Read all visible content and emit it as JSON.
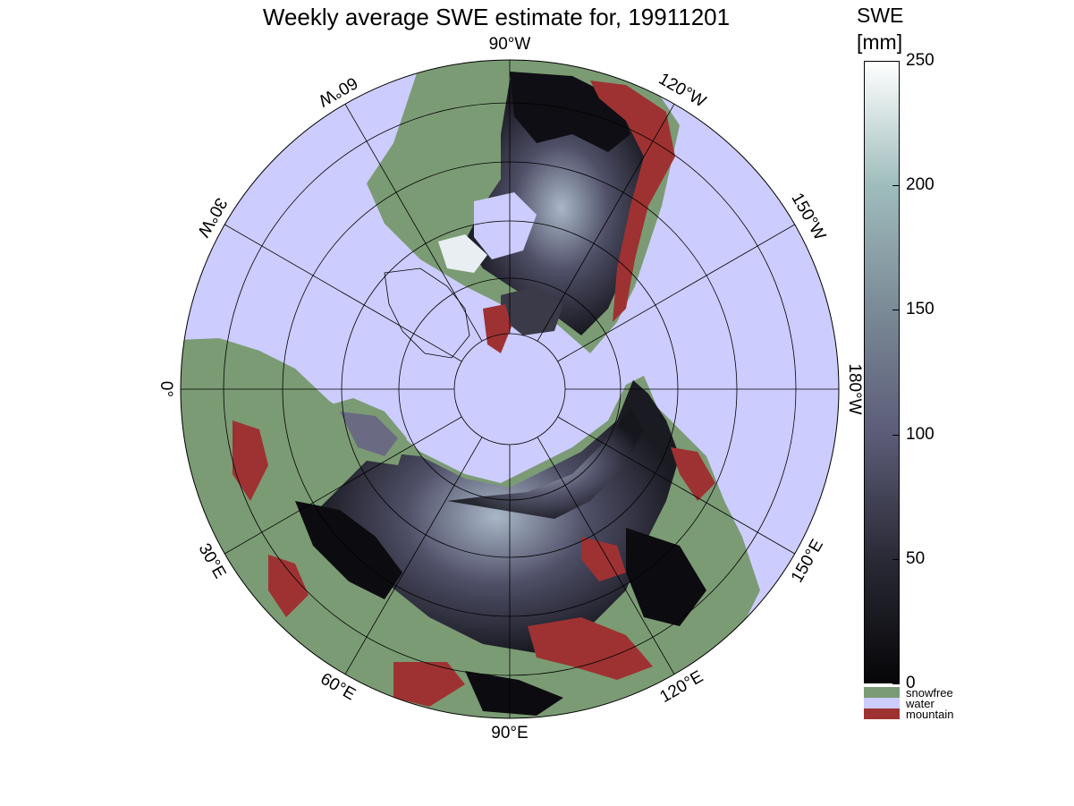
{
  "title": "Weekly average SWE estimate for, 19911201",
  "colorbar": {
    "label_line1": "SWE",
    "label_line2": "[mm]",
    "ticks": [
      "0",
      "50",
      "100",
      "150",
      "200",
      "250"
    ],
    "range": [
      0,
      250
    ],
    "gradient_colors": [
      "#060608",
      "#2a2a36",
      "#5c5c78",
      "#7a8a96",
      "#9fbcbc",
      "#ffffff"
    ],
    "categories": [
      {
        "label": "snowfree",
        "color": "#7b9b74"
      },
      {
        "label": "water",
        "color": "#ccccff"
      },
      {
        "label": "mountain",
        "color": "#9e3232"
      }
    ]
  },
  "map": {
    "projection": "polar stereographic, north pole",
    "longitude_labels": [
      {
        "text": "90°W",
        "angle_deg": -90
      },
      {
        "text": "120°W",
        "angle_deg": -60
      },
      {
        "text": "150°W",
        "angle_deg": -30
      },
      {
        "text": "180°W",
        "angle_deg": 0
      },
      {
        "text": "150°E",
        "angle_deg": 30
      },
      {
        "text": "120°E",
        "angle_deg": 60
      },
      {
        "text": "90°E",
        "angle_deg": 90
      },
      {
        "text": "60°E",
        "angle_deg": 120
      },
      {
        "text": "30°E",
        "angle_deg": 150
      },
      {
        "text": "0°",
        "angle_deg": 180
      },
      {
        "text": "30°W",
        "angle_deg": 210
      },
      {
        "text": "60°W",
        "angle_deg": 240
      }
    ],
    "colors": {
      "water": "#ccccff",
      "snowfree": "#7b9b74",
      "mountain": "#9e3232",
      "snow_low": "#121218",
      "snow_mid": "#4e4e66",
      "snow_high": "#c8d6e0",
      "outline": "#000000"
    }
  }
}
